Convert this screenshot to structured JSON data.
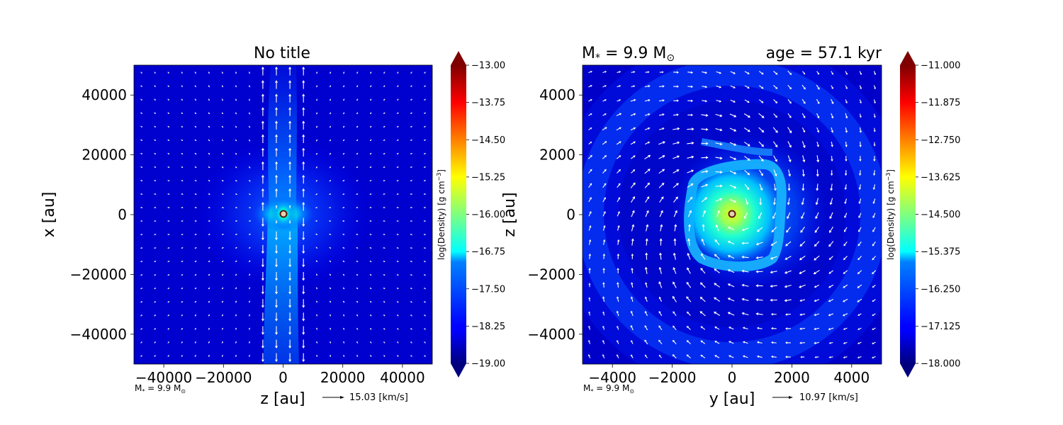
{
  "chart_data": [
    {
      "type": "heatmap",
      "title": "No title",
      "xlabel": "z [au]",
      "ylabel": "x [au]",
      "xlim": [
        -50000,
        50000
      ],
      "ylim": [
        -50000,
        50000
      ],
      "xticks": [
        -40000,
        -20000,
        0,
        20000,
        40000
      ],
      "yticks": [
        -40000,
        -20000,
        0,
        20000,
        40000
      ],
      "colorbar": {
        "label": "log(Density) [g cm$^{-3}$]",
        "label_text": "log(Density) [g cm",
        "label_sup": "−3",
        "label_end": "]",
        "range": [
          -19.0,
          -13.0
        ],
        "ticks": [
          "−13.00",
          "−13.75",
          "−14.50",
          "−15.25",
          "−16.00",
          "−16.75",
          "−17.50",
          "−18.25",
          "−19.00"
        ],
        "extend": "both",
        "colormap": "jet"
      },
      "annotation_mass": "M",
      "annotation_mass_sub": "*",
      "annotation_mass_rest": " = 9.9 M",
      "annotation_mass_sun": "⊙",
      "quiver_key": "15.03 [km/s]",
      "star_position": [
        0,
        0
      ],
      "grid": false
    },
    {
      "type": "heatmap",
      "title_left_main": "M",
      "title_left_sub": "*",
      "title_left_rest": " = 9.9 M",
      "title_left_sun": "⊙",
      "title_right": "age = 57.1 kyr",
      "xlabel": "y [au]",
      "ylabel": "z [au]",
      "xlim": [
        -5000,
        5000
      ],
      "ylim": [
        -5000,
        5000
      ],
      "xticks": [
        -4000,
        -2000,
        0,
        2000,
        4000
      ],
      "yticks": [
        -4000,
        -2000,
        0,
        2000,
        4000
      ],
      "colorbar": {
        "label": "log(Density) [g cm$^{-3}$]",
        "label_text": "log(Density) [g cm",
        "label_sup": "−3",
        "label_end": "]",
        "range": [
          -18.0,
          -11.0
        ],
        "ticks": [
          "−11.000",
          "−11.875",
          "−12.750",
          "−13.625",
          "−14.500",
          "−15.375",
          "−16.250",
          "−17.125",
          "−18.000"
        ],
        "extend": "both",
        "colormap": "jet"
      },
      "annotation_mass": "M",
      "annotation_mass_sub": "*",
      "annotation_mass_rest": " = 9.9 M",
      "annotation_mass_sun": "⊙",
      "quiver_key": "10.97 [km/s]",
      "star_position": [
        0,
        0
      ],
      "grid": false
    }
  ],
  "colors": {
    "background_deep": "#0000ad",
    "jet_low": "#00007f",
    "jet_high": "#7f0000",
    "arrows": "#ffffff",
    "star_fill": "#e8d0b0",
    "star_ring": "#5a1a10"
  }
}
